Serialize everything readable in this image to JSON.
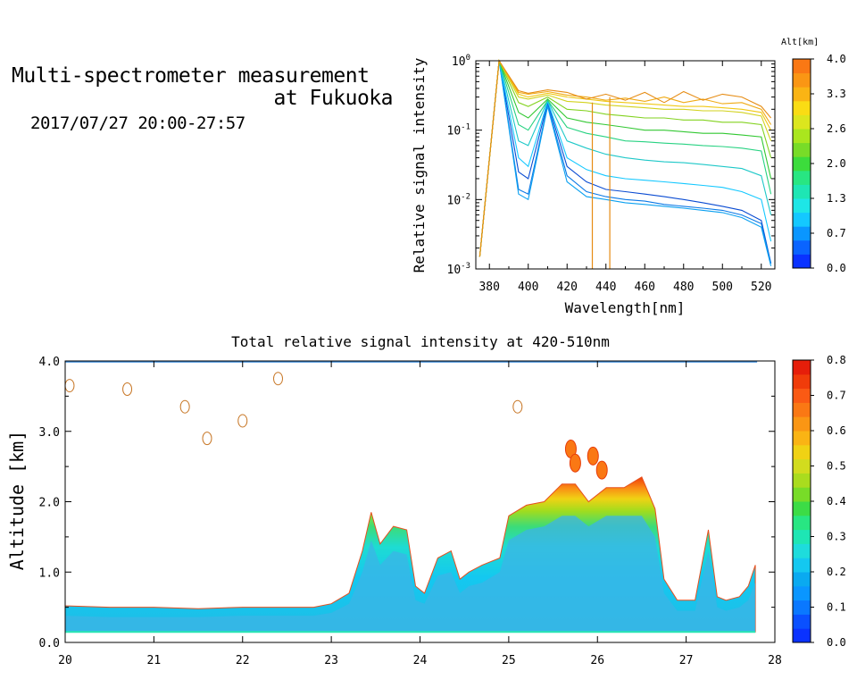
{
  "header": {
    "title_line1": "Multi-spectrometer measurement",
    "title_line2": "at Fukuoka",
    "date_range": "2017/07/27 20:00-27:57"
  },
  "chart_data": [
    {
      "type": "line",
      "title": "",
      "xlabel": "Wavelength[nm]",
      "ylabel": "Relative signal intensity",
      "yscale": "log",
      "xlim": [
        373,
        527
      ],
      "ylim": [
        0.001,
        1
      ],
      "xticks": [
        "380",
        "400",
        "420",
        "440",
        "460",
        "480",
        "500",
        "520"
      ],
      "yticks": [
        {
          "base": "10",
          "exp": "-3",
          "value": 0.001
        },
        {
          "base": "10",
          "exp": "-2",
          "value": 0.01
        },
        {
          "base": "10",
          "exp": "-1",
          "value": 0.1
        },
        {
          "base": "10",
          "exp": "0",
          "value": 1
        }
      ],
      "x": [
        375,
        385,
        395,
        400,
        410,
        420,
        430,
        440,
        450,
        460,
        470,
        480,
        490,
        500,
        510,
        520,
        525
      ],
      "colorbar": {
        "label": "Alt[km]",
        "ticks": [
          "0.0",
          "0.7",
          "1.3",
          "2.0",
          "2.6",
          "3.3",
          "4.0"
        ],
        "colors": [
          "#0a32ff",
          "#0a64ff",
          "#0a96ff",
          "#14c8ff",
          "#1ee6e6",
          "#1ee6b4",
          "#28e682",
          "#3cdc3c",
          "#78dc28",
          "#aae61e",
          "#dce61e",
          "#fadc14",
          "#fab414",
          "#fa9614",
          "#fa7814"
        ]
      },
      "series": [
        {
          "color": "#0a4bd2",
          "values": [
            0.0015,
            1.0,
            0.025,
            0.02,
            0.25,
            0.03,
            0.018,
            0.014,
            0.013,
            0.012,
            0.011,
            0.01,
            0.009,
            0.008,
            0.007,
            0.005,
            0.0012
          ]
        },
        {
          "color": "#0a78e6",
          "values": [
            0.0015,
            1.0,
            0.014,
            0.012,
            0.23,
            0.022,
            0.013,
            0.011,
            0.01,
            0.0095,
            0.0085,
            0.008,
            0.0075,
            0.007,
            0.006,
            0.0045,
            0.0012
          ]
        },
        {
          "color": "#0aa0f0",
          "values": [
            0.0015,
            1.0,
            0.012,
            0.01,
            0.22,
            0.018,
            0.011,
            0.01,
            0.009,
            0.0085,
            0.008,
            0.0075,
            0.007,
            0.0065,
            0.0055,
            0.004,
            0.0011
          ]
        },
        {
          "color": "#14c8ff",
          "values": [
            0.0015,
            1.0,
            0.04,
            0.03,
            0.26,
            0.04,
            0.027,
            0.022,
            0.02,
            0.019,
            0.018,
            0.017,
            0.016,
            0.015,
            0.013,
            0.01,
            0.0025
          ]
        },
        {
          "color": "#1ec8c8",
          "values": [
            0.0015,
            1.0,
            0.07,
            0.06,
            0.27,
            0.07,
            0.055,
            0.045,
            0.04,
            0.037,
            0.035,
            0.034,
            0.032,
            0.03,
            0.028,
            0.022,
            0.006
          ]
        },
        {
          "color": "#28d282",
          "values": [
            0.0015,
            1.0,
            0.12,
            0.1,
            0.27,
            0.11,
            0.09,
            0.08,
            0.07,
            0.068,
            0.065,
            0.063,
            0.06,
            0.058,
            0.055,
            0.05,
            0.012
          ]
        },
        {
          "color": "#32c832",
          "values": [
            0.0015,
            1.0,
            0.18,
            0.15,
            0.28,
            0.15,
            0.13,
            0.12,
            0.11,
            0.1,
            0.1,
            0.095,
            0.09,
            0.09,
            0.085,
            0.08,
            0.02
          ]
        },
        {
          "color": "#82d21e",
          "values": [
            0.0015,
            1.0,
            0.25,
            0.22,
            0.3,
            0.2,
            0.19,
            0.17,
            0.16,
            0.15,
            0.15,
            0.14,
            0.14,
            0.13,
            0.13,
            0.12,
            0.04
          ]
        },
        {
          "color": "#d2d21e",
          "values": [
            0.0015,
            1.0,
            0.3,
            0.28,
            0.32,
            0.26,
            0.25,
            0.23,
            0.22,
            0.21,
            0.2,
            0.2,
            0.19,
            0.19,
            0.18,
            0.16,
            0.07
          ]
        },
        {
          "color": "#f0c814",
          "values": [
            0.0015,
            1.0,
            0.33,
            0.3,
            0.34,
            0.3,
            0.28,
            0.26,
            0.25,
            0.24,
            0.23,
            0.22,
            0.22,
            0.21,
            0.2,
            0.18,
            0.1
          ]
        },
        {
          "color": "#f0aa14",
          "values": [
            0.0015,
            1.0,
            0.35,
            0.33,
            0.36,
            0.32,
            0.3,
            0.27,
            0.29,
            0.26,
            0.3,
            0.25,
            0.28,
            0.24,
            0.25,
            0.2,
            0.12
          ]
        },
        {
          "color": "#e68c14",
          "values": [
            0.0015,
            1.0,
            0.37,
            0.34,
            0.38,
            0.35,
            0.28,
            0.33,
            0.27,
            0.35,
            0.25,
            0.36,
            0.27,
            0.33,
            0.3,
            0.22,
            0.15
          ]
        }
      ]
    },
    {
      "type": "heatmap",
      "title": "Total relative signal intensity at 420-510nm",
      "xlabel": "",
      "ylabel": "Altitude [km]",
      "xlim": [
        20,
        28
      ],
      "ylim": [
        0,
        4
      ],
      "xticks": [
        "20",
        "21",
        "22",
        "23",
        "24",
        "25",
        "26",
        "27",
        "28"
      ],
      "yticks": [
        "0.0",
        "1.0",
        "2.0",
        "3.0",
        "4.0"
      ],
      "colorbar": {
        "ticks": [
          "0.0",
          "0.1",
          "0.2",
          "0.3",
          "0.4",
          "0.5",
          "0.6",
          "0.7",
          "0.8"
        ],
        "colors": [
          "#0a32ff",
          "#0a50ff",
          "#0a78ff",
          "#0a96ff",
          "#0aaaf0",
          "#14c8f0",
          "#1edcdc",
          "#1ee6b4",
          "#28e682",
          "#3cdc46",
          "#78dc28",
          "#aadc1e",
          "#d2dc1e",
          "#f0d214",
          "#fab414",
          "#fa9614",
          "#fa7814",
          "#fa5a14",
          "#f03c0a",
          "#e61e0a"
        ]
      },
      "boundary_layer_top_km": {
        "time": [
          20.0,
          20.5,
          21.0,
          21.5,
          22.0,
          22.5,
          22.8,
          23.0,
          23.2,
          23.35,
          23.45,
          23.55,
          23.7,
          23.85,
          23.95,
          24.05,
          24.2,
          24.35,
          24.45,
          24.55,
          24.7,
          24.9,
          25.0,
          25.2,
          25.4,
          25.6,
          25.75,
          25.9,
          26.1,
          26.3,
          26.5,
          26.65,
          26.75,
          26.9,
          27.1,
          27.25,
          27.35,
          27.45,
          27.6,
          27.7,
          27.78
        ],
        "top": [
          0.52,
          0.5,
          0.5,
          0.48,
          0.5,
          0.5,
          0.5,
          0.55,
          0.7,
          1.3,
          1.85,
          1.4,
          1.65,
          1.6,
          0.8,
          0.7,
          1.2,
          1.3,
          0.9,
          1.0,
          1.1,
          1.2,
          1.8,
          1.95,
          2.0,
          2.25,
          2.25,
          2.0,
          2.2,
          2.2,
          2.35,
          1.9,
          0.9,
          0.6,
          0.6,
          1.6,
          0.65,
          0.6,
          0.65,
          0.8,
          1.1
        ],
        "core": [
          0.38,
          0.36,
          0.36,
          0.36,
          0.38,
          0.38,
          0.38,
          0.42,
          0.55,
          1.0,
          1.45,
          1.1,
          1.3,
          1.25,
          0.6,
          0.55,
          0.95,
          1.0,
          0.7,
          0.8,
          0.85,
          1.0,
          1.45,
          1.6,
          1.65,
          1.8,
          1.8,
          1.65,
          1.8,
          1.8,
          1.8,
          1.5,
          0.7,
          0.45,
          0.45,
          1.3,
          0.5,
          0.45,
          0.5,
          0.6,
          0.85
        ],
        "floor": 0.15
      },
      "elevated_patches": [
        {
          "t": 25.7,
          "alt": 2.75
        },
        {
          "t": 25.75,
          "alt": 2.55
        },
        {
          "t": 25.95,
          "alt": 2.65
        },
        {
          "t": 26.05,
          "alt": 2.45
        }
      ],
      "isolated_contours": [
        {
          "t": 20.05,
          "alt": 3.65
        },
        {
          "t": 20.7,
          "alt": 3.6
        },
        {
          "t": 21.35,
          "alt": 3.35
        },
        {
          "t": 21.6,
          "alt": 2.9
        },
        {
          "t": 22.0,
          "alt": 3.15
        },
        {
          "t": 22.4,
          "alt": 3.75
        },
        {
          "t": 25.1,
          "alt": 3.35
        }
      ]
    }
  ]
}
